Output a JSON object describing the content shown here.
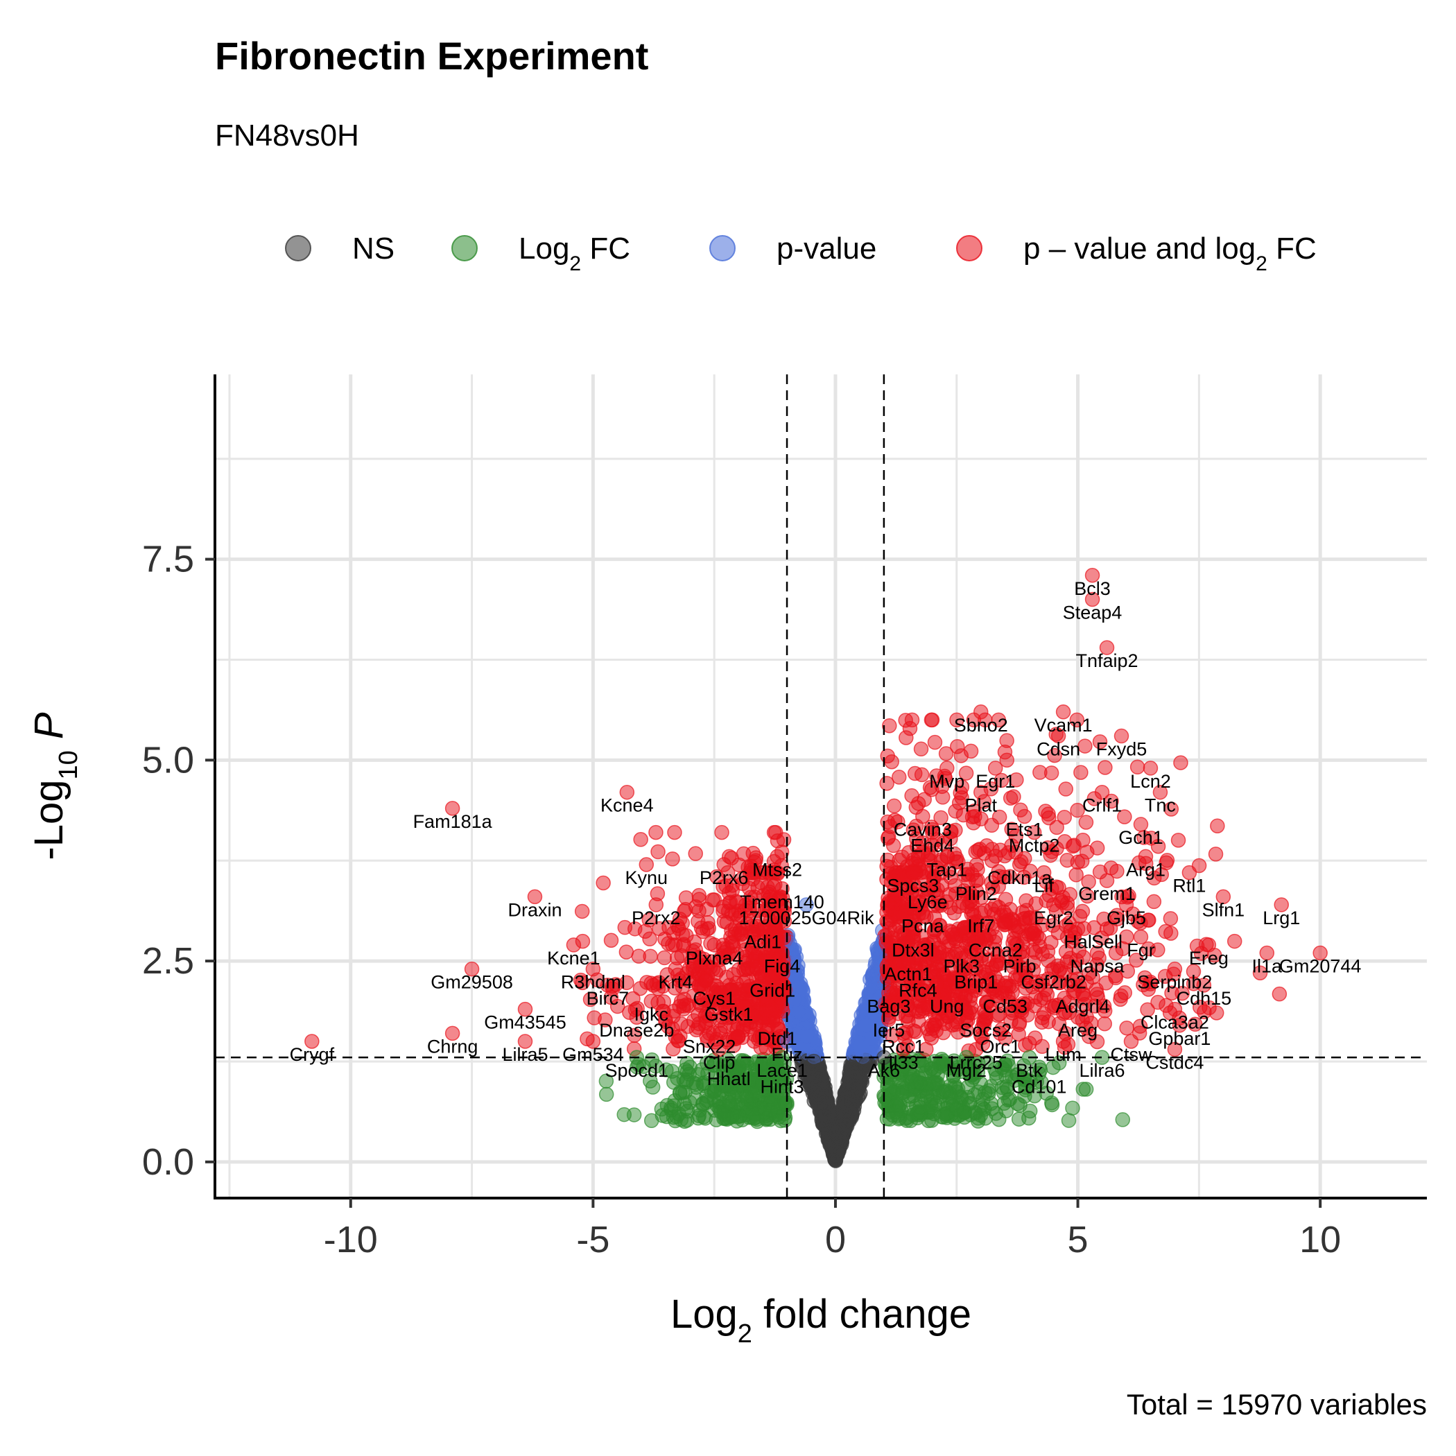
{
  "title": "Fibronectin Experiment",
  "subtitle": "FN48vs0H",
  "caption": "Total = 15970 variables",
  "legend": [
    {
      "label": "NS",
      "color": "#3a3a3a"
    },
    {
      "label": "Log2 FC",
      "color": "#2e8b2e"
    },
    {
      "label": "p-value",
      "color": "#4a6fd8"
    },
    {
      "label": "p – value and log2 FC",
      "color": "#e8121b"
    }
  ],
  "chart_data": {
    "type": "scatter",
    "title": "Fibronectin Experiment",
    "subtitle": "FN48vs0H",
    "xlabel": "Log2 fold change",
    "ylabel": "-Log10 P",
    "xlim": [
      -12.8,
      12.2
    ],
    "ylim": [
      -0.45,
      9.8
    ],
    "x_ticks": [
      -10,
      -5,
      0,
      5,
      10
    ],
    "y_ticks": [
      0.0,
      2.5,
      5.0,
      7.5
    ],
    "y_tick_labels": [
      "0.0",
      "2.5",
      "5.0",
      "7.5"
    ],
    "fc_cutoff": 1,
    "p_cutoff_neglog10": 1.3,
    "grid": true,
    "legend_position": "top",
    "total_variables": 15970,
    "series": [
      {
        "name": "NS",
        "color": "#3a3a3a"
      },
      {
        "name": "Log2 FC",
        "color": "#2e8b2e"
      },
      {
        "name": "p-value",
        "color": "#4a6fd8"
      },
      {
        "name": "p – value and log2 FC",
        "color": "#e8121b"
      }
    ],
    "labeled_points": [
      {
        "label": "Bcl3",
        "x": 5.3,
        "y": 7.3
      },
      {
        "label": "Steap4",
        "x": 5.3,
        "y": 7.0
      },
      {
        "label": "Tnfaip2",
        "x": 5.6,
        "y": 6.4
      },
      {
        "label": "Sbno2",
        "x": 3.0,
        "y": 5.6
      },
      {
        "label": "Vcam1",
        "x": 4.7,
        "y": 5.6
      },
      {
        "label": "Cdsn",
        "x": 4.6,
        "y": 5.3
      },
      {
        "label": "Fxyd5",
        "x": 5.9,
        "y": 5.3
      },
      {
        "label": "Mvp",
        "x": 2.3,
        "y": 4.9
      },
      {
        "label": "Egr1",
        "x": 3.3,
        "y": 4.9
      },
      {
        "label": "Lcn2",
        "x": 6.5,
        "y": 4.9
      },
      {
        "label": "Plat",
        "x": 3.0,
        "y": 4.6
      },
      {
        "label": "Crlf1",
        "x": 5.5,
        "y": 4.6
      },
      {
        "label": "Tnc",
        "x": 6.7,
        "y": 4.6
      },
      {
        "label": "Cavin3",
        "x": 1.8,
        "y": 4.3
      },
      {
        "label": "Ets1",
        "x": 3.9,
        "y": 4.3
      },
      {
        "label": "Gch1",
        "x": 6.3,
        "y": 4.2
      },
      {
        "label": "Ehd4",
        "x": 2.0,
        "y": 4.1
      },
      {
        "label": "Mctp2",
        "x": 4.1,
        "y": 4.1
      },
      {
        "label": "Arg1",
        "x": 6.4,
        "y": 3.8
      },
      {
        "label": "Tap1",
        "x": 2.3,
        "y": 3.8
      },
      {
        "label": "Cdkn1a",
        "x": 3.8,
        "y": 3.7
      },
      {
        "label": "Rtl1",
        "x": 7.3,
        "y": 3.6
      },
      {
        "label": "Spcs3",
        "x": 1.6,
        "y": 3.6
      },
      {
        "label": "Lif",
        "x": 4.3,
        "y": 3.6
      },
      {
        "label": "Grem1",
        "x": 5.6,
        "y": 3.5
      },
      {
        "label": "Plin2",
        "x": 2.9,
        "y": 3.5
      },
      {
        "label": "Ly6e",
        "x": 1.9,
        "y": 3.4
      },
      {
        "label": "Egr2",
        "x": 4.5,
        "y": 3.2
      },
      {
        "label": "Gjb5",
        "x": 6.0,
        "y": 3.2
      },
      {
        "label": "Slfn1",
        "x": 8.0,
        "y": 3.3
      },
      {
        "label": "Lrg1",
        "x": 9.2,
        "y": 3.2
      },
      {
        "label": "Pcna",
        "x": 1.8,
        "y": 3.1
      },
      {
        "label": "Irf7",
        "x": 3.0,
        "y": 3.1
      },
      {
        "label": "Hal",
        "x": 5.0,
        "y": 2.9
      },
      {
        "label": "Sell",
        "x": 5.6,
        "y": 2.9
      },
      {
        "label": "Dtx3l",
        "x": 1.6,
        "y": 2.8
      },
      {
        "label": "Ccna2",
        "x": 3.3,
        "y": 2.8
      },
      {
        "label": "Fgr",
        "x": 6.3,
        "y": 2.8
      },
      {
        "label": "Ereg",
        "x": 7.7,
        "y": 2.7
      },
      {
        "label": "Plk3",
        "x": 2.6,
        "y": 2.6
      },
      {
        "label": "Pirb",
        "x": 3.8,
        "y": 2.6
      },
      {
        "label": "Napsa",
        "x": 5.4,
        "y": 2.6
      },
      {
        "label": "Il1a",
        "x": 8.9,
        "y": 2.6
      },
      {
        "label": "Actn1",
        "x": 1.5,
        "y": 2.5
      },
      {
        "label": "Rfc4",
        "x": 1.7,
        "y": 2.3
      },
      {
        "label": "Brip1",
        "x": 2.9,
        "y": 2.4
      },
      {
        "label": "Csf2rb2",
        "x": 4.5,
        "y": 2.4
      },
      {
        "label": "Serpinb2",
        "x": 7.0,
        "y": 2.4
      },
      {
        "label": "Gm20744",
        "x": 10.0,
        "y": 2.6
      },
      {
        "label": "Cdh15",
        "x": 7.6,
        "y": 2.2
      },
      {
        "label": "Bag3",
        "x": 1.1,
        "y": 2.1
      },
      {
        "label": "Ung",
        "x": 2.3,
        "y": 2.1
      },
      {
        "label": "Cd53",
        "x": 3.5,
        "y": 2.1
      },
      {
        "label": "Adgrl4",
        "x": 5.1,
        "y": 2.1
      },
      {
        "label": "Ier5",
        "x": 1.1,
        "y": 1.8
      },
      {
        "label": "Socs2",
        "x": 3.1,
        "y": 1.8
      },
      {
        "label": "Areg",
        "x": 5.0,
        "y": 1.8
      },
      {
        "label": "Clca3a2",
        "x": 7.0,
        "y": 1.9
      },
      {
        "label": "Gpbar1",
        "x": 7.1,
        "y": 1.7
      },
      {
        "label": "Rcc1",
        "x": 1.4,
        "y": 1.6
      },
      {
        "label": "Orc1",
        "x": 3.4,
        "y": 1.6
      },
      {
        "label": "Lum",
        "x": 4.7,
        "y": 1.5
      },
      {
        "label": "Ctsw",
        "x": 6.1,
        "y": 1.5
      },
      {
        "label": "Il33",
        "x": 1.4,
        "y": 1.4
      },
      {
        "label": "Lrrc25",
        "x": 2.9,
        "y": 1.4
      },
      {
        "label": "Cstdc4",
        "x": 7.0,
        "y": 1.4
      },
      {
        "label": "Btk",
        "x": 4.0,
        "y": 1.3
      },
      {
        "label": "Lilra6",
        "x": 5.5,
        "y": 1.3
      },
      {
        "label": "Ak6",
        "x": 1.0,
        "y": 1.3
      },
      {
        "label": "Mgl2",
        "x": 2.7,
        "y": 1.3
      },
      {
        "label": "Cd101",
        "x": 4.2,
        "y": 1.1
      },
      {
        "label": "Fam181a",
        "x": -7.9,
        "y": 4.4
      },
      {
        "label": "Kcne4",
        "x": -4.3,
        "y": 4.6
      },
      {
        "label": "Mtss2",
        "x": -1.2,
        "y": 3.8
      },
      {
        "label": "P2rx6",
        "x": -2.3,
        "y": 3.7
      },
      {
        "label": "Kynu",
        "x": -3.9,
        "y": 3.7
      },
      {
        "label": "Tmem140",
        "x": -1.1,
        "y": 3.4
      },
      {
        "label": "1700025G04Rik",
        "x": -0.6,
        "y": 3.2
      },
      {
        "label": "Draxin",
        "x": -6.2,
        "y": 3.3
      },
      {
        "label": "P2rx2",
        "x": -3.7,
        "y": 3.2
      },
      {
        "label": "Adi1",
        "x": -1.5,
        "y": 2.9
      },
      {
        "label": "Kcne1",
        "x": -5.4,
        "y": 2.7
      },
      {
        "label": "Plxna4",
        "x": -2.5,
        "y": 2.7
      },
      {
        "label": "Fig4",
        "x": -1.1,
        "y": 2.6
      },
      {
        "label": "R3hdml",
        "x": -5.0,
        "y": 2.4
      },
      {
        "label": "Krt4",
        "x": -3.3,
        "y": 2.4
      },
      {
        "label": "Grid1",
        "x": -1.3,
        "y": 2.3
      },
      {
        "label": "Gm29508",
        "x": -7.5,
        "y": 2.4
      },
      {
        "label": "Birc7",
        "x": -4.7,
        "y": 2.2
      },
      {
        "label": "Cys1",
        "x": -2.5,
        "y": 2.2
      },
      {
        "label": "Igkc",
        "x": -3.8,
        "y": 2.0
      },
      {
        "label": "Gstk1",
        "x": -2.2,
        "y": 2.0
      },
      {
        "label": "Gm43545",
        "x": -6.4,
        "y": 1.9
      },
      {
        "label": "Dnase2b",
        "x": -4.1,
        "y": 1.8
      },
      {
        "label": "Dtd1",
        "x": -1.2,
        "y": 1.7
      },
      {
        "label": "Snx22",
        "x": -2.6,
        "y": 1.6
      },
      {
        "label": "Fuz",
        "x": -1.0,
        "y": 1.5
      },
      {
        "label": "Gm534",
        "x": -5.0,
        "y": 1.5
      },
      {
        "label": "Lilra5",
        "x": -6.4,
        "y": 1.5
      },
      {
        "label": "Clip",
        "x": -2.4,
        "y": 1.4
      },
      {
        "label": "Lace1",
        "x": -1.1,
        "y": 1.3
      },
      {
        "label": "Spocd1",
        "x": -4.1,
        "y": 1.3
      },
      {
        "label": "Hhatl",
        "x": -2.2,
        "y": 1.2
      },
      {
        "label": "Hint3",
        "x": -1.1,
        "y": 1.1
      },
      {
        "label": "Chrng",
        "x": -7.9,
        "y": 1.6
      },
      {
        "label": "Crygf",
        "x": -10.8,
        "y": 1.5
      }
    ]
  }
}
